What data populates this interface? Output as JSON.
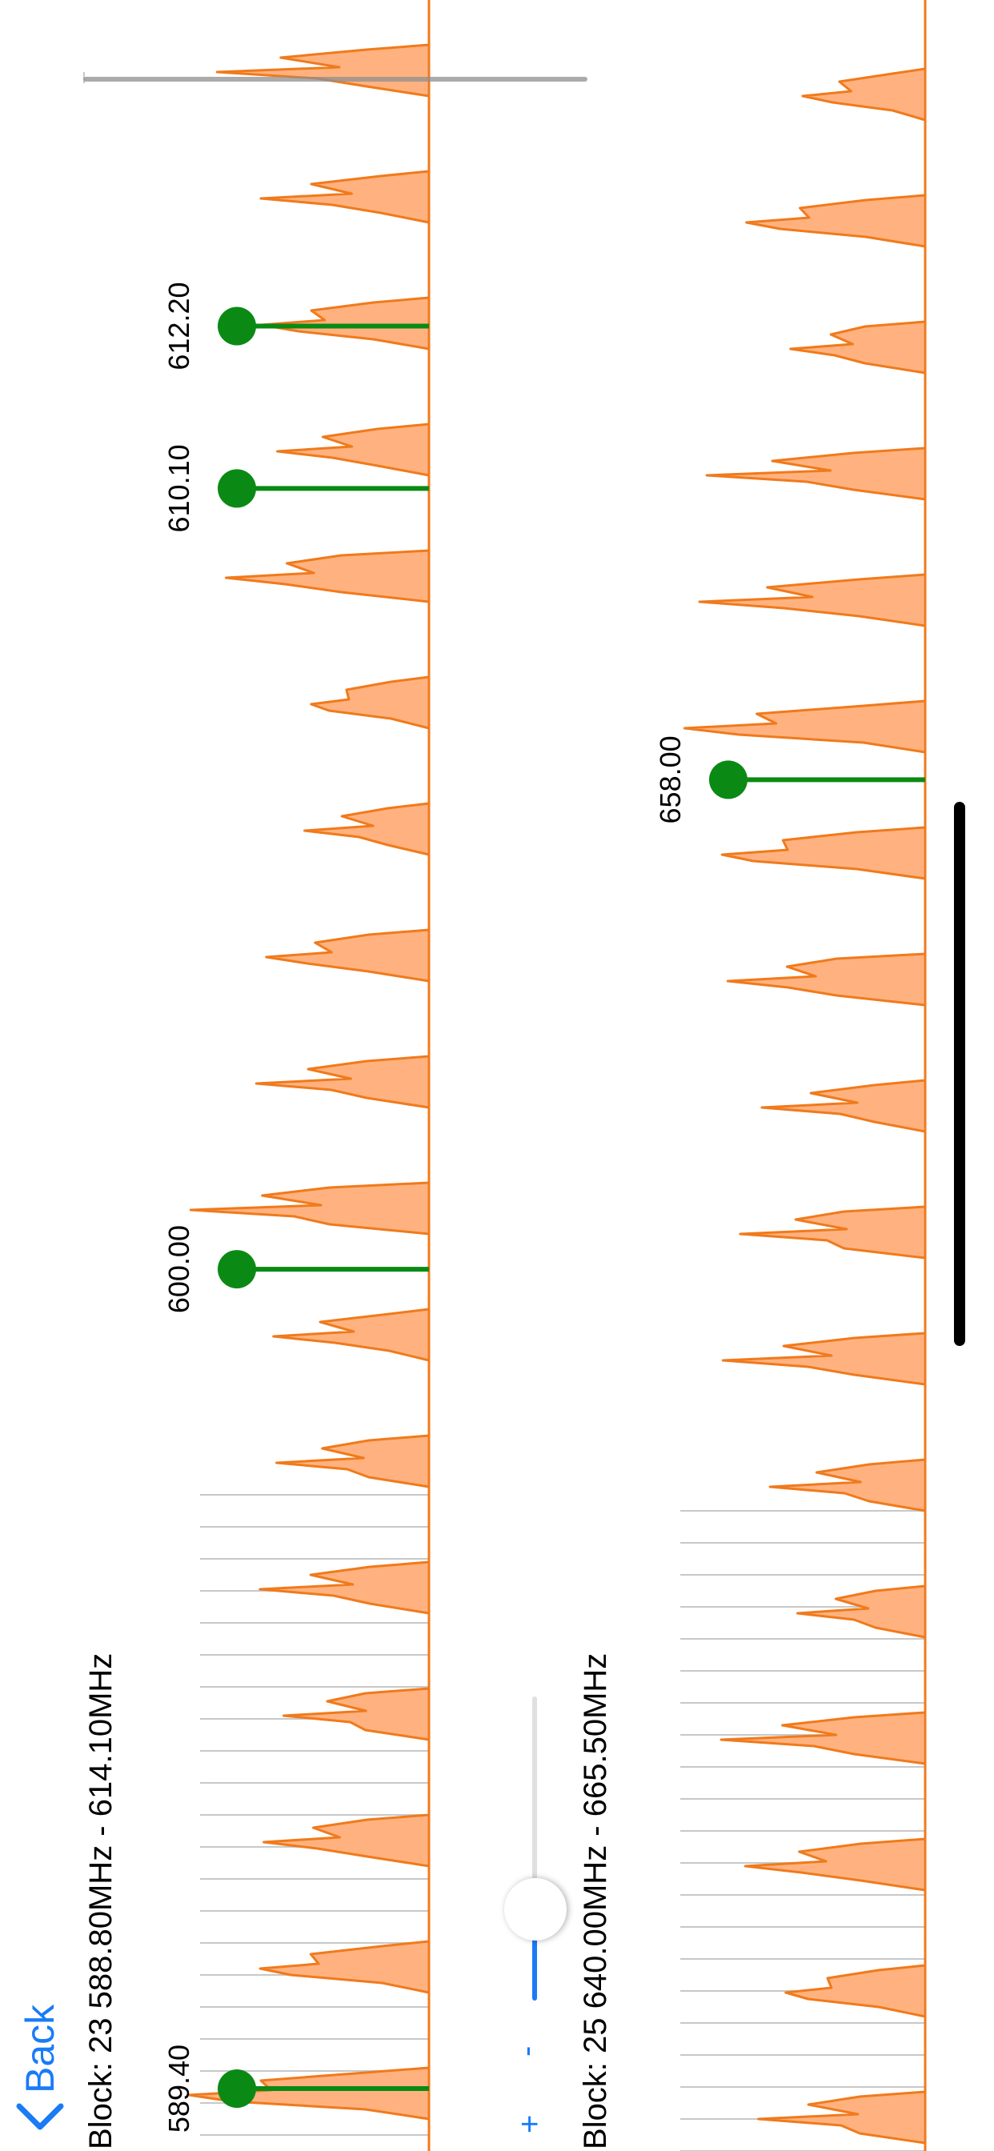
{
  "nav": {
    "back_label": "Back"
  },
  "colors": {
    "accent": "#1a7cf5",
    "spectrum_fill": "#ffb27f",
    "spectrum_stroke": "#f07a1c",
    "marker": "#0a8a14",
    "grid": "#c8c8c8"
  },
  "zoom": {
    "plus_label": "+",
    "minus_label": "-",
    "level": 0.3
  },
  "blocks": [
    {
      "title": "Block: 23 588.80MHz - 614.10MHz",
      "range_mhz": [
        588.8,
        614.1
      ],
      "start_label": "589.40",
      "markers": [
        {
          "label": "589.40",
          "freq": 589.4
        },
        {
          "label": "600.00",
          "freq": 600.0
        },
        {
          "label": "610.10",
          "freq": 610.1
        },
        {
          "label": "612.20",
          "freq": 612.2
        }
      ]
    },
    {
      "title": "Block: 25 640.00MHz - 665.50MHz",
      "range_mhz": [
        640.0,
        665.5
      ],
      "markers": [
        {
          "label": "658.00",
          "freq": 658.0
        }
      ]
    }
  ]
}
